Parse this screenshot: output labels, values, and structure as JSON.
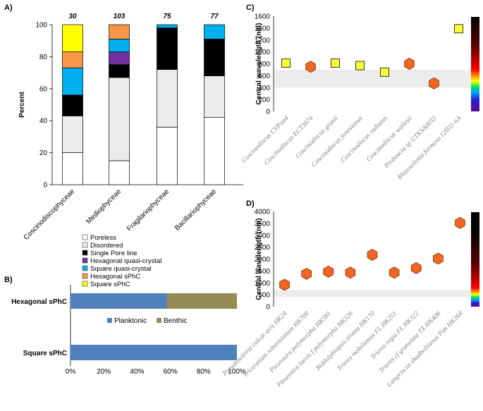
{
  "chart_data": [
    {
      "panel": "A)",
      "type": "bar",
      "stacked": true,
      "ylabel": "Percent",
      "ylim": [
        0,
        100
      ],
      "yticks": [
        0,
        20,
        40,
        60,
        80,
        100
      ],
      "categories": [
        "Coscinodiscophyceae",
        "Mediophyceae",
        "Fragilariophyceae",
        "Bacillariophyceae"
      ],
      "counts": [
        "30",
        "103",
        "75",
        "77"
      ],
      "series": [
        {
          "name": "Poreless",
          "color": "#ffffff",
          "values": [
            20,
            15,
            36,
            42
          ]
        },
        {
          "name": "Disordered",
          "color": "#ececec",
          "values": [
            23,
            52,
            36,
            26
          ]
        },
        {
          "name": "Single Pore line",
          "color": "#000000",
          "values": [
            13,
            8,
            26,
            23
          ]
        },
        {
          "name": "Hexagonal quasi-crystal",
          "color": "#7030a0",
          "values": [
            0,
            8,
            0,
            0
          ]
        },
        {
          "name": "Square quasi-crystal",
          "color": "#00b0f0",
          "values": [
            17,
            8,
            2,
            9
          ]
        },
        {
          "name": "Hexagonal sPhC",
          "color": "#f79646",
          "values": [
            10,
            9,
            0,
            0
          ]
        },
        {
          "name": "Square sPhC",
          "color": "#ffff00",
          "values": [
            17,
            0,
            0,
            0
          ]
        }
      ]
    },
    {
      "panel": "B)",
      "type": "bar",
      "orientation": "horizontal",
      "stacked": true,
      "categories": [
        "Hexagonal sPhC",
        "Square sPhC"
      ],
      "xticks": [
        "0%",
        "20%",
        "40%",
        "60%",
        "80%",
        "100%"
      ],
      "series": [
        {
          "name": "Planktonic",
          "color": "#4f81bd",
          "values": [
            58,
            100
          ]
        },
        {
          "name": "Benthic",
          "color": "#948a54",
          "values": [
            42,
            0
          ]
        }
      ]
    },
    {
      "panel": "C)",
      "type": "scatter",
      "ylabel": "Central wavelength (nm)",
      "ylim": [
        0,
        1600
      ],
      "yticks": [
        0,
        200,
        400,
        600,
        800,
        1000,
        1200,
        1400,
        1600
      ],
      "visible_band": [
        400,
        700
      ],
      "categories": [
        "Coscinodiscus CVPan4",
        "Coscinodiscus ECT3874",
        "Coscinodiscus granii",
        "Coscinodiscus jonesianus",
        "Coscinodiscus radiatus",
        "Coscinodiscus wailesii",
        "Proboscia sp UTKSA0033",
        "Rhizosolenia formosa 12II11-6A"
      ],
      "values": [
        810,
        750,
        810,
        770,
        660,
        800,
        470,
        1390
      ],
      "markers": [
        "square",
        "hexagon",
        "square",
        "square",
        "square",
        "hexagon",
        "hexagon",
        "square"
      ]
    },
    {
      "panel": "D)",
      "type": "scatter",
      "ylabel": "Central wavelength (nm)",
      "ylim": [
        0,
        4000
      ],
      "yticks": [
        0,
        500,
        1000,
        1500,
        2000,
        2500,
        3000,
        3500,
        4000
      ],
      "visible_band": [
        400,
        700
      ],
      "categories": [
        "Pseudosolenia calcar avis HK24",
        "Triceratium robertsianum HK700",
        "Pleurosira polymorpha HK581",
        "Pleurosira laevis f polymorpha HK326",
        "Biddulphiopsis titiana HK170",
        "Trieres mobiliensis FL HK251",
        "Trieres regia FL HK322",
        "Trieres cf granulata TX HK406",
        "Lampriscus shadboltianus Pan HK264"
      ],
      "values": [
        920,
        1380,
        1470,
        1430,
        2180,
        1430,
        1620,
        2020,
        3520
      ],
      "markers": [
        "hexagon",
        "hexagon",
        "hexagon",
        "hexagon",
        "hexagon",
        "hexagon",
        "hexagon",
        "hexagon",
        "hexagon"
      ]
    }
  ]
}
